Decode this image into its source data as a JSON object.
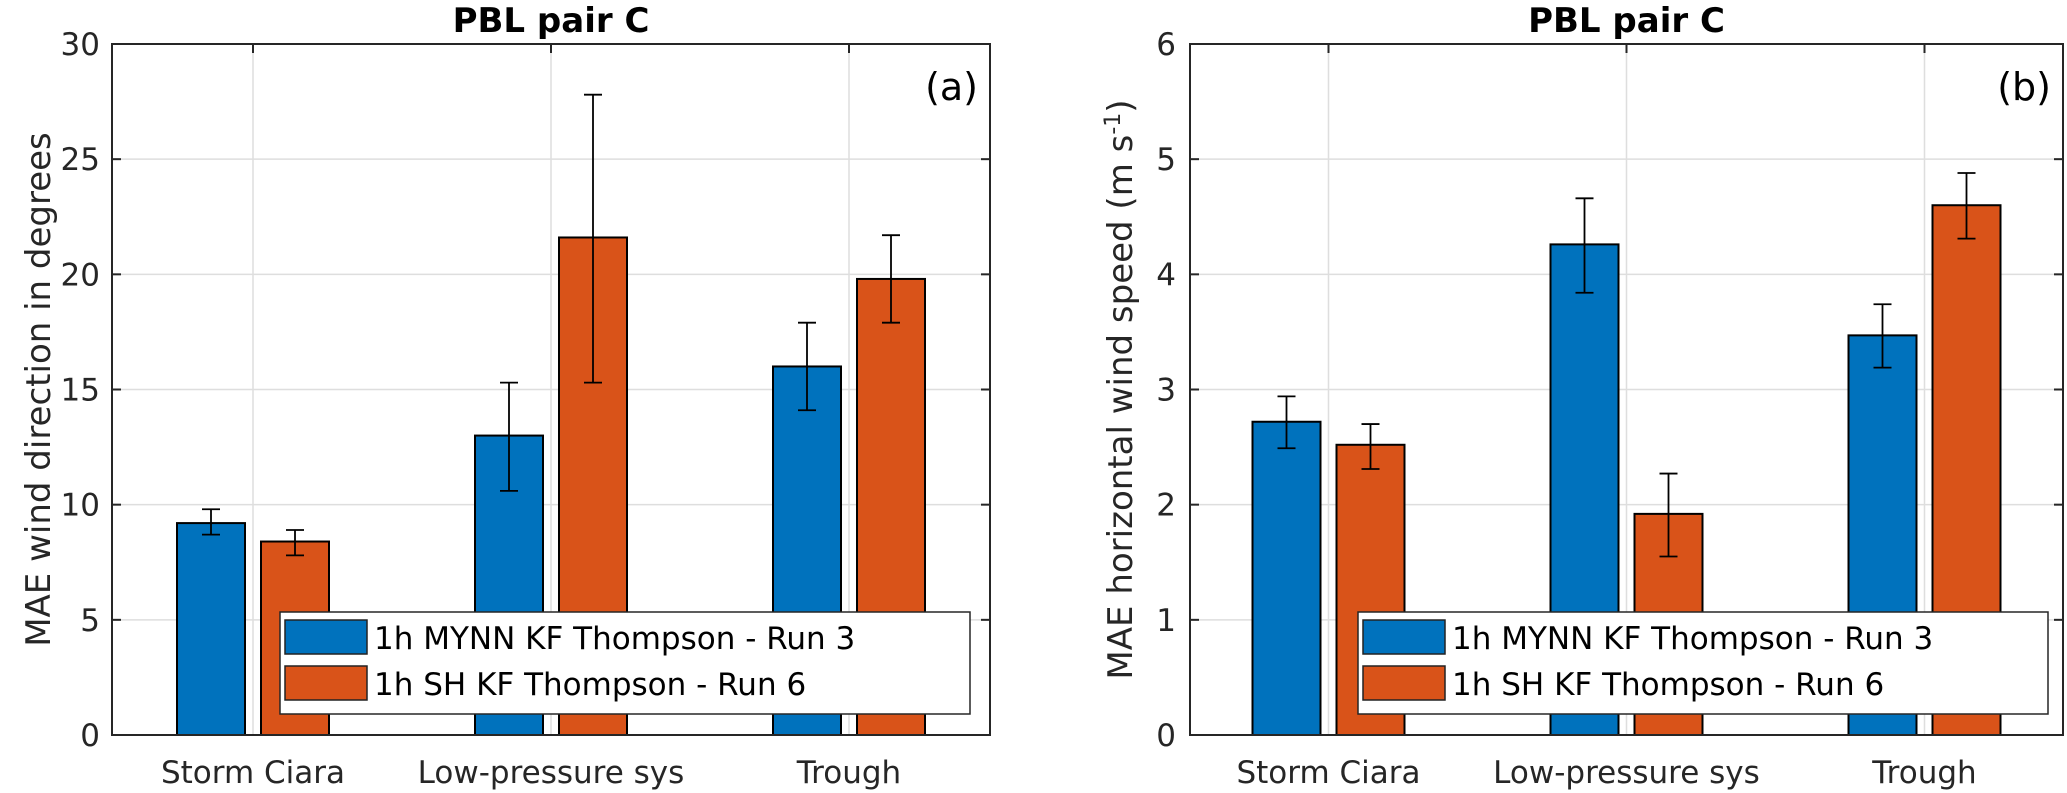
{
  "colors": {
    "series1": "#0072BD",
    "series2": "#D95319"
  },
  "legend": {
    "placement": "bottom-right",
    "entries": [
      "1h MYNN KF Thompson - Run 3",
      "1h SH KF Thompson - Run 6"
    ]
  },
  "chart_data": [
    {
      "type": "bar",
      "panel_label": "(a)",
      "title": "PBL pair C",
      "xlabel": "",
      "ylabel": "MAE wind direction in degrees",
      "ylim": [
        0,
        30
      ],
      "yticks": [
        0,
        5,
        10,
        15,
        20,
        25,
        30
      ],
      "grid": true,
      "categories": [
        "Storm Ciara",
        "Low-pressure sys",
        "Trough"
      ],
      "series": [
        {
          "name": "1h MYNN KF Thompson - Run 3",
          "values": [
            9.2,
            13.0,
            16.0
          ],
          "error_low": [
            8.7,
            10.6,
            14.1
          ],
          "error_high": [
            9.8,
            15.3,
            17.9
          ]
        },
        {
          "name": "1h SH KF Thompson - Run 6",
          "values": [
            8.4,
            21.6,
            19.8
          ],
          "error_low": [
            7.8,
            15.3,
            17.9
          ],
          "error_high": [
            8.9,
            27.8,
            21.7
          ]
        }
      ]
    },
    {
      "type": "bar",
      "panel_label": "(b)",
      "title": "PBL pair C",
      "xlabel": "",
      "ylabel": "MAE horizontal wind speed (m s⁻¹)",
      "ylabel_main": "MAE horizontal wind speed (m s",
      "ylabel_sup": "-1",
      "ylabel_end": ")",
      "ylim": [
        0,
        6
      ],
      "yticks": [
        0,
        1,
        2,
        3,
        4,
        5,
        6
      ],
      "grid": true,
      "categories": [
        "Storm Ciara",
        "Low-pressure sys",
        "Trough"
      ],
      "series": [
        {
          "name": "1h MYNN KF Thompson - Run 3",
          "values": [
            2.72,
            4.26,
            3.47
          ],
          "error_low": [
            2.49,
            3.84,
            3.19
          ],
          "error_high": [
            2.94,
            4.66,
            3.74
          ]
        },
        {
          "name": "1h SH KF Thompson - Run 6",
          "values": [
            2.52,
            1.92,
            4.6
          ],
          "error_low": [
            2.31,
            1.55,
            4.31
          ],
          "error_high": [
            2.7,
            2.27,
            4.88
          ]
        }
      ]
    }
  ]
}
